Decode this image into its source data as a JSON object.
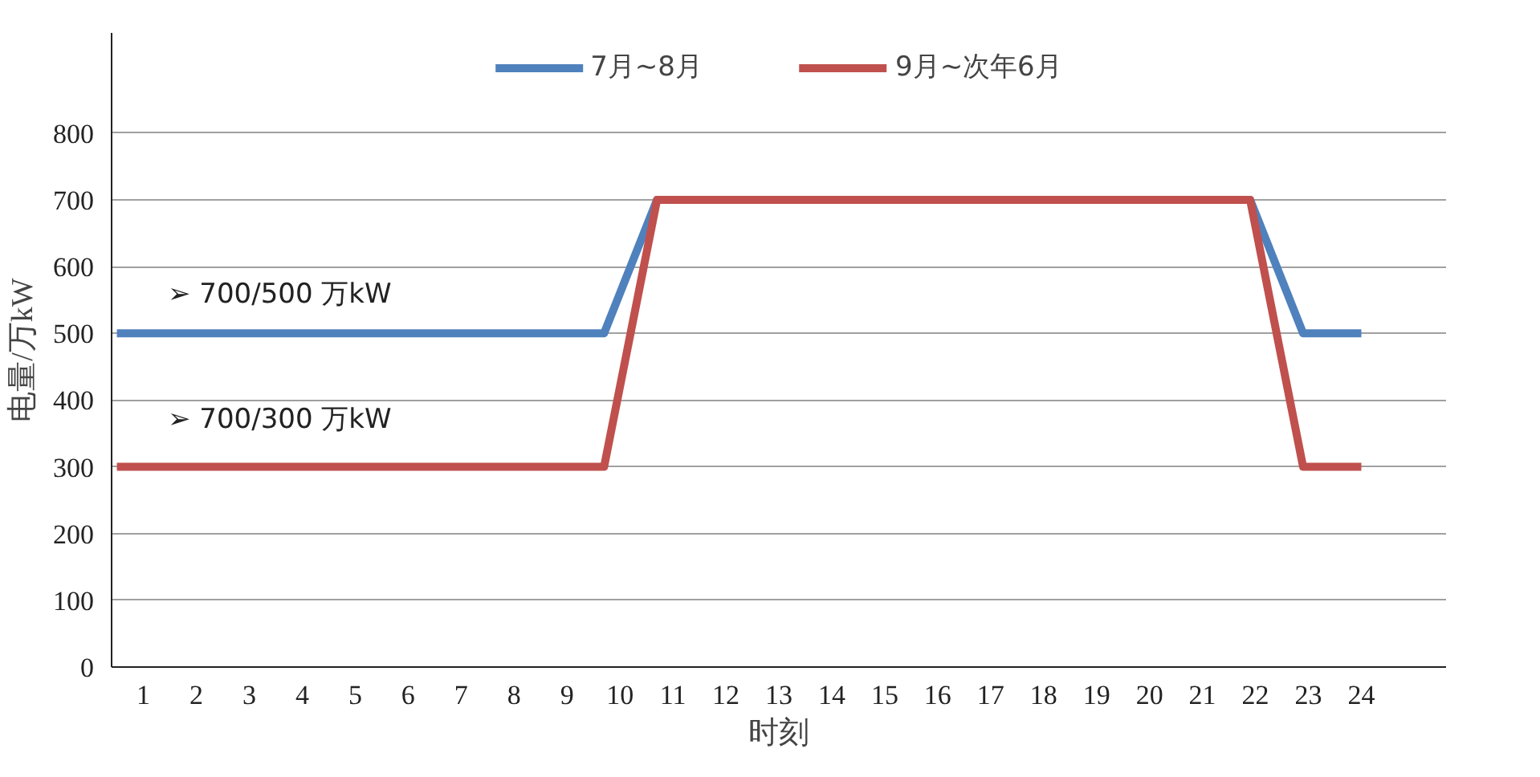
{
  "chart_data": {
    "type": "line",
    "xlabel": "时刻",
    "ylabel": "电量/万kW",
    "xlim": [
      0.4,
      25.6
    ],
    "xticks": [
      1,
      2,
      3,
      4,
      5,
      6,
      7,
      8,
      9,
      10,
      11,
      12,
      13,
      14,
      15,
      16,
      17,
      18,
      19,
      20,
      21,
      22,
      23,
      24
    ],
    "ylim": [
      0,
      950
    ],
    "yticks": [
      0,
      100,
      200,
      300,
      400,
      500,
      600,
      700,
      800
    ],
    "series": [
      {
        "name": "7月~8月",
        "color": "#4f81bd",
        "x": [
          0.5,
          9.7,
          10.7,
          21.9,
          22.9,
          24
        ],
        "values": [
          500,
          500,
          700,
          700,
          500,
          500
        ]
      },
      {
        "name": "9月~次年6月",
        "color": "#c0504d",
        "x": [
          0.5,
          9.7,
          10.7,
          21.9,
          22.9,
          24
        ],
        "values": [
          300,
          300,
          700,
          700,
          300,
          300
        ]
      }
    ],
    "annotations": [
      "➢  700/500 万kW",
      "➢  700/300 万kW"
    ],
    "grid": "y",
    "legend": "top",
    "marker": "none",
    "line_style": "solid"
  }
}
